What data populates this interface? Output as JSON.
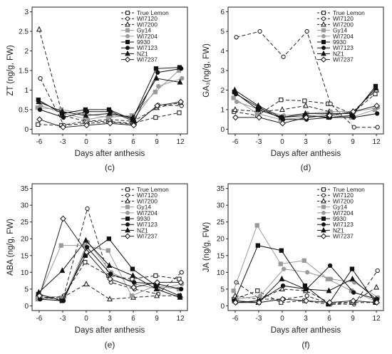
{
  "chart_data": [
    {
      "type": "line",
      "panel_label": "(c)",
      "xlabel": "Days after anthesis",
      "ylabel": "ZT (ng/g, FW)",
      "x": [
        -6,
        -3,
        0,
        3,
        6,
        9,
        12
      ],
      "xticks": [
        "-6",
        "-3",
        "0",
        "3",
        "6",
        "9",
        "12"
      ],
      "ylim": [
        0,
        3
      ],
      "yticks": [
        "0",
        "0.5",
        "1",
        "1.5",
        "2",
        "2.5",
        "3"
      ],
      "legend_position": "top-right",
      "grid": false,
      "series": [
        {
          "name": "True Lemon",
          "values": [
            0.12,
            0.1,
            0.2,
            0.2,
            0.15,
            0.3,
            0.42
          ]
        },
        {
          "name": "WI7120",
          "values": [
            1.3,
            0.1,
            0.15,
            0.18,
            0.12,
            0.62,
            0.6
          ]
        },
        {
          "name": "WI7200",
          "values": [
            2.55,
            0.35,
            0.2,
            0.25,
            0.2,
            0.55,
            0.68
          ]
        },
        {
          "name": "Gy14",
          "values": [
            0.55,
            0.5,
            0.4,
            0.3,
            0.35,
            0.95,
            1.5
          ]
        },
        {
          "name": "WI7204",
          "values": [
            0.6,
            0.4,
            0.25,
            0.35,
            0.3,
            1.1,
            1.3
          ]
        },
        {
          "name": "9930",
          "values": [
            0.75,
            0.4,
            0.5,
            0.5,
            0.25,
            1.55,
            1.58
          ]
        },
        {
          "name": "WI7123",
          "values": [
            0.5,
            0.3,
            0.45,
            0.45,
            0.2,
            1.45,
            1.55
          ]
        },
        {
          "name": "NZ1",
          "values": [
            0.7,
            0.45,
            0.35,
            0.4,
            0.3,
            1.3,
            1.2
          ]
        },
        {
          "name": "WI7237",
          "values": [
            0.25,
            0.05,
            0.1,
            0.15,
            0.1,
            0.6,
            0.7
          ]
        }
      ]
    },
    {
      "type": "line",
      "panel_label": "(d)",
      "xlabel": "Days after anthesis",
      "ylabel": "GA₃(ng/g, FW)",
      "x": [
        -6,
        -3,
        0,
        3,
        6,
        9,
        12
      ],
      "xticks": [
        "-6",
        "-3",
        "0",
        "3",
        "6",
        "9",
        "12"
      ],
      "ylim": [
        0,
        6
      ],
      "yticks": [
        "0",
        "1",
        "2",
        "3",
        "4",
        "5",
        "6"
      ],
      "legend_position": "top-right",
      "grid": false,
      "series": [
        {
          "name": "True Lemon",
          "values": [
            0.9,
            0.7,
            1.5,
            1.45,
            1.3,
            0.8,
            1.8
          ]
        },
        {
          "name": "WI7120",
          "values": [
            4.7,
            5.0,
            3.7,
            5.0,
            1.3,
            0.1,
            0.1
          ]
        },
        {
          "name": "WI7200",
          "values": [
            1.0,
            0.9,
            1.0,
            1.2,
            0.9,
            0.9,
            2.0
          ]
        },
        {
          "name": "Gy14",
          "values": [
            1.6,
            0.8,
            0.5,
            0.6,
            0.8,
            0.6,
            1.0
          ]
        },
        {
          "name": "WI7204",
          "values": [
            1.4,
            1.0,
            0.7,
            0.8,
            0.9,
            0.9,
            1.1
          ]
        },
        {
          "name": "9930",
          "values": [
            1.9,
            1.0,
            0.6,
            0.7,
            0.6,
            0.7,
            2.2
          ]
        },
        {
          "name": "WI7123",
          "values": [
            1.8,
            1.1,
            0.5,
            0.5,
            0.6,
            0.6,
            0.8
          ]
        },
        {
          "name": "NZ1",
          "values": [
            2.0,
            1.2,
            0.6,
            0.8,
            0.8,
            0.8,
            2.1
          ]
        },
        {
          "name": "WI7237",
          "values": [
            0.6,
            0.6,
            0.3,
            0.6,
            0.7,
            0.9,
            1.2
          ]
        }
      ]
    },
    {
      "type": "line",
      "panel_label": "(e)",
      "xlabel": "Days after anthesis",
      "ylabel": "ABA (ng/g, FW)",
      "x": [
        -6,
        -3,
        0,
        3,
        6,
        9,
        12
      ],
      "xticks": [
        "-6",
        "-3",
        "0",
        "3",
        "6",
        "9",
        "12"
      ],
      "ylim": [
        0,
        35
      ],
      "yticks": [
        "0",
        "5",
        "10",
        "15",
        "20",
        "25",
        "30",
        "35"
      ],
      "legend_position": "top-right",
      "grid": false,
      "series": [
        {
          "name": "True Lemon",
          "values": [
            2.5,
            2.0,
            13.0,
            9.0,
            8.0,
            9.0,
            8.0
          ]
        },
        {
          "name": "WI7120",
          "values": [
            2.0,
            3.0,
            29.0,
            7.0,
            5.0,
            3.5,
            10.0
          ]
        },
        {
          "name": "WI7200",
          "values": [
            2.5,
            2.5,
            6.5,
            2.0,
            2.5,
            3.0,
            3.0
          ]
        },
        {
          "name": "Gy14",
          "values": [
            2.0,
            18.0,
            18.0,
            16.5,
            3.0,
            6.0,
            5.0
          ]
        },
        {
          "name": "WI7204",
          "values": [
            3.0,
            2.5,
            19.0,
            10.0,
            6.5,
            5.0,
            6.5
          ]
        },
        {
          "name": "9930",
          "values": [
            3.5,
            1.5,
            15.0,
            20.0,
            11.0,
            6.0,
            3.0
          ]
        },
        {
          "name": "WI7123",
          "values": [
            2.0,
            1.5,
            17.5,
            9.5,
            7.0,
            6.5,
            5.0
          ]
        },
        {
          "name": "NZ1",
          "values": [
            4.0,
            10.5,
            19.5,
            12.0,
            9.0,
            5.0,
            2.5
          ]
        },
        {
          "name": "WI7237",
          "values": [
            3.0,
            26.0,
            16.0,
            8.0,
            5.5,
            7.0,
            7.0
          ]
        }
      ]
    },
    {
      "type": "line",
      "panel_label": "(f)",
      "xlabel": "Days after anthesis",
      "ylabel": "JA (ng/g, FW)",
      "x": [
        -6,
        -3,
        0,
        3,
        6,
        9,
        12
      ],
      "xticks": [
        "-6",
        "-3",
        "0",
        "3",
        "6",
        "9",
        "12"
      ],
      "ylim": [
        0,
        35
      ],
      "yticks": [
        "0",
        "5",
        "10",
        "15",
        "20",
        "25",
        "30",
        "35"
      ],
      "legend_position": "top-right",
      "grid": false,
      "series": [
        {
          "name": "True Lemon",
          "values": [
            2.0,
            4.5,
            1.0,
            1.5,
            0.5,
            1.0,
            1.0
          ]
        },
        {
          "name": "WI7120",
          "values": [
            7.0,
            2.0,
            2.0,
            3.0,
            0.5,
            0.5,
            10.5
          ]
        },
        {
          "name": "WI7200",
          "values": [
            3.0,
            2.0,
            5.0,
            4.5,
            1.0,
            1.0,
            5.5
          ]
        },
        {
          "name": "Gy14",
          "values": [
            4.5,
            24.0,
            12.5,
            13.5,
            8.0,
            4.5,
            1.5
          ]
        },
        {
          "name": "WI7204",
          "values": [
            2.0,
            3.0,
            11.0,
            10.0,
            8.0,
            7.0,
            2.5
          ]
        },
        {
          "name": "9930",
          "values": [
            1.5,
            18.0,
            16.5,
            6.0,
            0.5,
            11.0,
            1.0
          ]
        },
        {
          "name": "WI7123",
          "values": [
            1.0,
            1.5,
            6.0,
            5.0,
            12.0,
            4.0,
            2.0
          ]
        },
        {
          "name": "NZ1",
          "values": [
            1.5,
            1.0,
            8.0,
            5.0,
            4.5,
            8.0,
            2.0
          ]
        },
        {
          "name": "WI7237",
          "values": [
            1.0,
            1.0,
            2.0,
            1.5,
            1.0,
            1.5,
            1.0
          ]
        }
      ]
    }
  ],
  "series_styles": [
    {
      "color": "#222222",
      "fill": "#ffffff",
      "marker": "square",
      "dash": "5,3"
    },
    {
      "color": "#222222",
      "fill": "#ffffff",
      "marker": "circle",
      "dash": "5,3"
    },
    {
      "color": "#222222",
      "fill": "#ffffff",
      "marker": "triangle",
      "dash": "5,3"
    },
    {
      "color": "#9a9a9a",
      "fill": "#9a9a9a",
      "marker": "square",
      "dash": ""
    },
    {
      "color": "#9a9a9a",
      "fill": "#9a9a9a",
      "marker": "circle",
      "dash": ""
    },
    {
      "color": "#111111",
      "fill": "#111111",
      "marker": "square",
      "dash": ""
    },
    {
      "color": "#111111",
      "fill": "#111111",
      "marker": "circle",
      "dash": ""
    },
    {
      "color": "#111111",
      "fill": "#111111",
      "marker": "triangle",
      "dash": ""
    },
    {
      "color": "#222222",
      "fill": "#ffffff",
      "marker": "diamond",
      "dash": ""
    }
  ]
}
